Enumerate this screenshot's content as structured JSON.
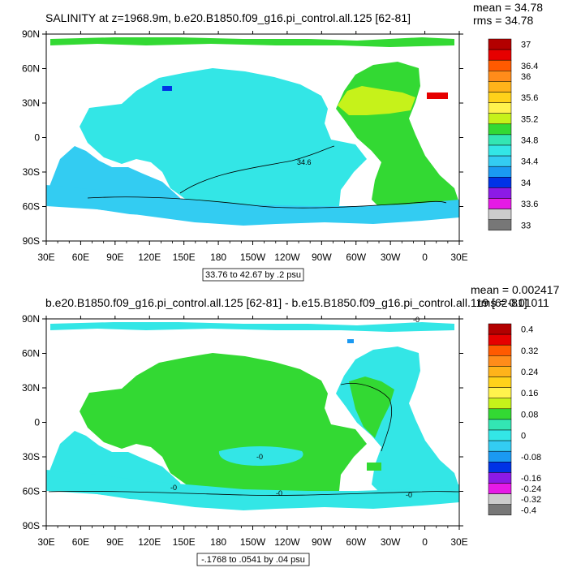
{
  "chart_data": [
    {
      "type": "heatmap",
      "title": "SALINITY at z=1968.9m, b.e20.B1850.f09_g16.pi_control.all.125 [62-81]",
      "stats": {
        "mean": "mean = 34.78",
        "rms": "rms = 34.78"
      },
      "subtitle_box": "33.76 to 42.67 by .2 psu",
      "x_ticks": [
        "30E",
        "60E",
        "90E",
        "120E",
        "150E",
        "180",
        "150W",
        "120W",
        "90W",
        "60W",
        "30W",
        "0",
        "30E"
      ],
      "y_ticks": [
        "90N",
        "60N",
        "30N",
        "0",
        "30S",
        "60S",
        "90S"
      ],
      "xlim_deg_east": [
        30,
        390
      ],
      "ylim_deg": [
        -90,
        90
      ],
      "contour_label": "34.6",
      "colorbar": {
        "colors": [
          "#b30000",
          "#e60000",
          "#ff5a00",
          "#ff8c1a",
          "#ffb31a",
          "#ffd21a",
          "#fff24d",
          "#c6f21a",
          "#33d933",
          "#33e6b3",
          "#33e6e6",
          "#33ccf2",
          "#1a99f2",
          "#0033e6",
          "#8c1ae6",
          "#e61ae6",
          "#cccccc",
          "#777777"
        ],
        "labels": [
          "37",
          "36.4",
          "36",
          "35.6",
          "35.2",
          "34.8",
          "34.4",
          "34",
          "33.6",
          "33"
        ],
        "label_slots": [
          0,
          2,
          3,
          5,
          7,
          9,
          11,
          13,
          15,
          17
        ]
      },
      "field_colors": {
        "main": "#33e6e6",
        "deep": "#33ccf2",
        "atlantic": "#33d933",
        "med": "#c6f21a",
        "high": "#e60000",
        "low": "#0033e6"
      }
    },
    {
      "type": "heatmap",
      "title": "b.e20.B1850.f09_g16.pi_control.all.125 [62-81] - b.e15.B1850.f09_g16.pi_control.all.119 [62-81]",
      "stats": {
        "mean": "mean = 0.002417",
        "rms": "rms = 0.01011"
      },
      "subtitle_box": "-.1768 to .0541 by .04 psu",
      "x_ticks": [
        "30E",
        "60E",
        "90E",
        "120E",
        "150E",
        "180",
        "150W",
        "120W",
        "90W",
        "60W",
        "30W",
        "0",
        "30E"
      ],
      "y_ticks": [
        "90N",
        "60N",
        "30N",
        "0",
        "30S",
        "60S",
        "90S"
      ],
      "xlim_deg_east": [
        30,
        390
      ],
      "ylim_deg": [
        -90,
        90
      ],
      "contour_labels": [
        "-0",
        "-0",
        "-0",
        "-0",
        "-0"
      ],
      "colorbar": {
        "colors": [
          "#b30000",
          "#e60000",
          "#ff5a00",
          "#ff8c1a",
          "#ffb31a",
          "#ffd21a",
          "#fff24d",
          "#c6f21a",
          "#33d933",
          "#33e6b3",
          "#33e6e6",
          "#33ccf2",
          "#1a99f2",
          "#0033e6",
          "#8c1ae6",
          "#e61ae6",
          "#cccccc",
          "#777777"
        ],
        "labels": [
          "0.4",
          "0.32",
          "0.24",
          "0.16",
          "0.08",
          "0",
          "-0.08",
          "-0.16",
          "-0.24",
          "-0.32",
          "-0.4"
        ],
        "label_slots": [
          0,
          2,
          4,
          6,
          8,
          10,
          12,
          14,
          15,
          16,
          17
        ]
      },
      "field_colors": {
        "main": "#33d933",
        "deep": "#33e6e6",
        "atlantic": "#33e6e6",
        "med": "#33d933",
        "high": "#33d933",
        "low": "#1a99f2"
      }
    }
  ]
}
